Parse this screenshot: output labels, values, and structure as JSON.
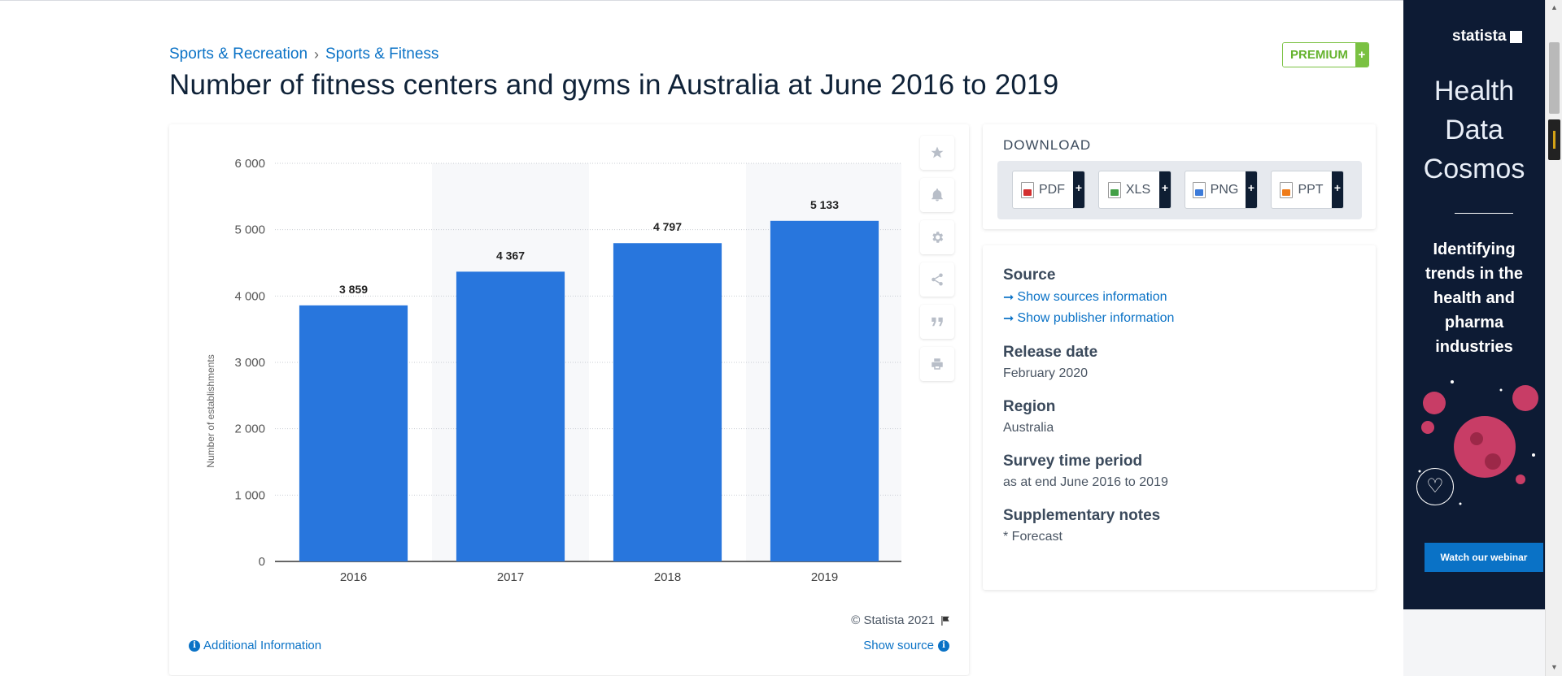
{
  "breadcrumb": [
    "Sports & Recreation",
    "Sports & Fitness"
  ],
  "breadcrumb_sep": "›",
  "title": "Number of fitness centers and gyms in Australia at June 2016 to 2019",
  "premium": {
    "label": "PREMIUM",
    "plus": "+"
  },
  "chart_tools": [
    "star-icon",
    "bell-icon",
    "gear-icon",
    "share-icon",
    "quote-icon",
    "print-icon"
  ],
  "credit": "© Statista 2021",
  "additional_info": "Additional Information",
  "show_source": "Show source",
  "download": {
    "title": "DOWNLOAD",
    "buttons": [
      {
        "label": "PDF",
        "plus": "+",
        "color": "#d32f2f"
      },
      {
        "label": "XLS",
        "plus": "+",
        "color": "#43a047"
      },
      {
        "label": "PNG",
        "plus": "+",
        "color": "#3d7bd9"
      },
      {
        "label": "PPT",
        "plus": "+",
        "color": "#ef7c1a"
      }
    ]
  },
  "info": {
    "source_heading": "Source",
    "source_links": [
      "Show sources information",
      "Show publisher information"
    ],
    "release_heading": "Release date",
    "release_value": "February 2020",
    "region_heading": "Region",
    "region_value": "Australia",
    "period_heading": "Survey time period",
    "period_value": "as at end June 2016 to 2019",
    "notes_heading": "Supplementary notes",
    "notes_value": "* Forecast"
  },
  "ad": {
    "brand": "statista",
    "headline": [
      "Health",
      "Data",
      "Cosmos"
    ],
    "subtext": [
      "Identifying",
      "trends in the",
      "health and",
      "pharma",
      "industries"
    ],
    "cta": "Watch our webinar"
  },
  "colors": {
    "bar": "#2876dd",
    "accent": "#0a72c6",
    "premium": "#7ac142"
  },
  "chart_data": {
    "type": "bar",
    "categories": [
      "2016",
      "2017",
      "2018",
      "2019"
    ],
    "values": [
      3859,
      4367,
      4797,
      5133
    ],
    "value_labels": [
      "3 859",
      "4 367",
      "4 797",
      "5 133"
    ],
    "ylabel": "Number of establishments",
    "ylim": [
      0,
      6000
    ],
    "yticks": [
      0,
      1000,
      2000,
      3000,
      4000,
      5000,
      6000
    ],
    "ytick_labels": [
      "0",
      "1 000",
      "2 000",
      "3 000",
      "4 000",
      "5 000",
      "6 000"
    ],
    "grid": true,
    "alternate_band_shading": true
  }
}
